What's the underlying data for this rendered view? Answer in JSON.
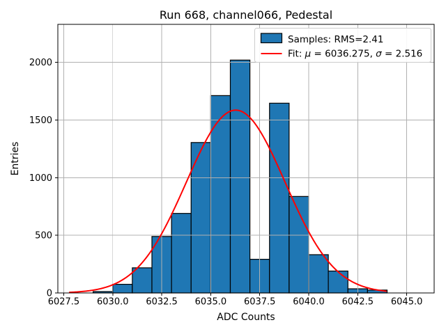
{
  "chart_data": {
    "type": "bar",
    "subtype": "histogram_with_gaussian_fit",
    "title": "Run 668, channel066, Pedestal",
    "xlabel": "ADC Counts",
    "ylabel": "Entries",
    "xlim": [
      6027.2,
      6046.4
    ],
    "ylim": [
      0,
      2330
    ],
    "grid": true,
    "bin_edges": [
      6029,
      6030,
      6031,
      6032,
      6033,
      6034,
      6035,
      6036,
      6037,
      6038,
      6039,
      6040,
      6041,
      6042,
      6043,
      6044
    ],
    "counts": [
      12,
      75,
      218,
      490,
      690,
      1305,
      1712,
      2020,
      292,
      1646,
      837,
      332,
      190,
      36,
      25
    ],
    "x_ticks": [
      6027.5,
      6030.0,
      6032.5,
      6035.0,
      6037.5,
      6040.0,
      6042.5,
      6045.0
    ],
    "x_tick_labels": [
      "6027.5",
      "6030.0",
      "6032.5",
      "6035.0",
      "6037.5",
      "6040.0",
      "6042.5",
      "6045.0"
    ],
    "y_ticks": [
      0,
      500,
      1000,
      1500,
      2000
    ],
    "y_tick_labels": [
      "0",
      "500",
      "1000",
      "1500",
      "2000"
    ],
    "fit": {
      "mu": 6036.275,
      "sigma": 2.516,
      "amplitude": 1586,
      "x_start": 6027.8,
      "x_end": 6043.95
    },
    "legend": {
      "position": "upper right",
      "entries": [
        {
          "marker": "patch",
          "label": "Samples: RMS=2.41"
        },
        {
          "marker": "line",
          "label": "Fit: μ = 6036.275, σ = 2.516",
          "label_parts": [
            "Fit: ",
            "μ",
            " = 6036.275, ",
            "σ",
            " = 2.516"
          ]
        }
      ]
    },
    "colors": {
      "bar_fill": "#1f77b4",
      "bar_edge": "#000000",
      "fit_line": "#ff0000",
      "grid": "#b0b0b0",
      "spine": "#000000",
      "background": "#ffffff",
      "legend_border": "#cccccc"
    }
  }
}
